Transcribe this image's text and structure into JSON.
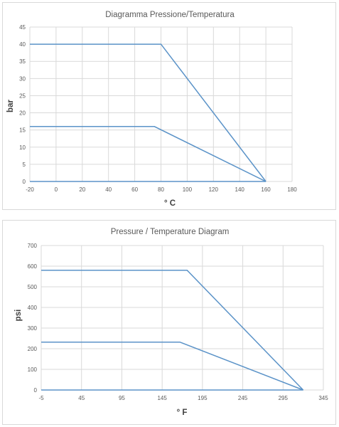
{
  "chart_data": [
    {
      "type": "line",
      "title": "Diagramma Pressione/Temperatura",
      "xlabel": "° C",
      "ylabel": "bar",
      "xlim": [
        -20,
        180
      ],
      "ylim": [
        0,
        45
      ],
      "xticks": [
        -20,
        0,
        20,
        40,
        60,
        80,
        100,
        120,
        140,
        160,
        180
      ],
      "yticks": [
        0,
        5,
        10,
        15,
        20,
        25,
        30,
        35,
        40,
        45
      ],
      "grid": true,
      "series_color": "#5b93c8",
      "series": [
        {
          "x": [
            -20,
            80,
            160
          ],
          "y": [
            40,
            40,
            0
          ]
        },
        {
          "x": [
            -20,
            75,
            160
          ],
          "y": [
            16,
            16,
            0
          ]
        },
        {
          "x": [
            -20,
            160
          ],
          "y": [
            0,
            0
          ]
        }
      ]
    },
    {
      "type": "line",
      "title": "Pressure / Temperature Diagram",
      "xlabel": "° F",
      "ylabel": "psi",
      "xlim": [
        -5,
        345
      ],
      "ylim": [
        0,
        700
      ],
      "xticks": [
        -5,
        45,
        95,
        145,
        195,
        245,
        295,
        345
      ],
      "yticks": [
        0,
        100,
        200,
        300,
        400,
        500,
        600,
        700
      ],
      "grid": true,
      "series_color": "#5b93c8",
      "series": [
        {
          "x": [
            -5,
            176,
            320
          ],
          "y": [
            580,
            580,
            0
          ]
        },
        {
          "x": [
            -5,
            167,
            320
          ],
          "y": [
            232,
            232,
            0
          ]
        },
        {
          "x": [
            -5,
            320
          ],
          "y": [
            0,
            0
          ]
        }
      ]
    }
  ]
}
